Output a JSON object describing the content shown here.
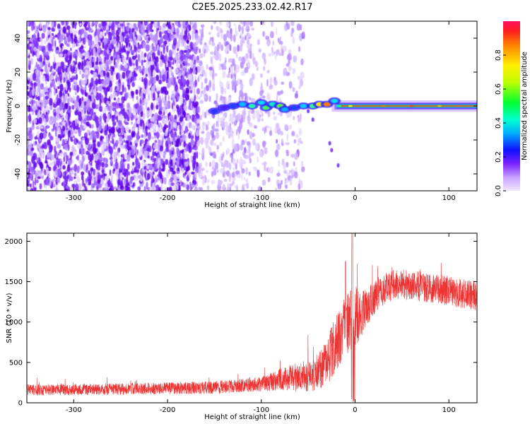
{
  "title": "C2E5.2025.233.02.42.R17",
  "chart_data": [
    {
      "type": "heatmap",
      "xlabel": "Height of straight line (km)",
      "ylabel": "Frequency (Hz)",
      "xlim": [
        -350,
        130
      ],
      "ylim": [
        -50,
        50
      ],
      "xticks": [
        "-300",
        "-200",
        "-100",
        "0",
        "100"
      ],
      "xtick_values": [
        -300,
        -200,
        -100,
        0,
        100
      ],
      "yticks": [
        "-40",
        "-20",
        "0",
        "20",
        "40"
      ],
      "ytick_values": [
        -40,
        -20,
        0,
        20,
        40
      ],
      "colorbar": {
        "label": "Normalized spectral amplitude",
        "range": [
          0,
          1
        ],
        "ticks": [
          "0.0",
          "0.2",
          "0.4",
          "0.6",
          "0.8"
        ],
        "tick_values": [
          0.0,
          0.2,
          0.4,
          0.6,
          0.8
        ]
      },
      "features": {
        "noise_region_x": [
          -350,
          -55
        ],
        "carrier_frequency": 0,
        "carrier_start_x": -20
      }
    },
    {
      "type": "line",
      "xlabel": "Height of straight line (km)",
      "ylabel": "SNR (10 * v/v)",
      "xlim": [
        -350,
        130
      ],
      "ylim": [
        0,
        2100
      ],
      "xticks": [
        "-300",
        "-200",
        "-100",
        "0",
        "100"
      ],
      "xtick_values": [
        -300,
        -200,
        -100,
        0,
        100
      ],
      "yticks": [
        "0",
        "500",
        "1000",
        "1500",
        "2000"
      ],
      "ytick_values": [
        0,
        500,
        1000,
        1500,
        2000
      ],
      "series_color": "#ee3333",
      "profile_x": [
        -350,
        -250,
        -150,
        -100,
        -75,
        -60,
        -45,
        -30,
        -20,
        -10,
        0,
        10,
        20,
        30,
        40,
        50,
        60,
        80,
        100,
        130
      ],
      "profile_mean": [
        160,
        170,
        190,
        230,
        300,
        320,
        340,
        500,
        750,
        950,
        1050,
        1150,
        1300,
        1400,
        1450,
        1460,
        1450,
        1420,
        1380,
        1330
      ],
      "profile_spread": [
        70,
        70,
        80,
        90,
        150,
        180,
        200,
        300,
        350,
        380,
        400,
        250,
        220,
        200,
        190,
        190,
        190,
        180,
        180,
        190
      ]
    }
  ]
}
